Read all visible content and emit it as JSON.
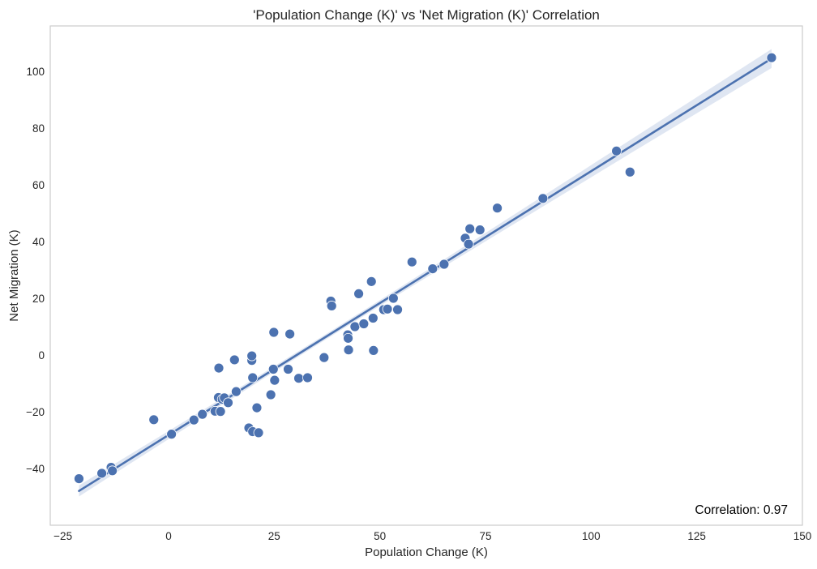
{
  "chart_data": {
    "type": "scatter",
    "title": "'Population Change (K)' vs 'Net Migration (K)' Correlation",
    "xlabel": "Population Change (K)",
    "ylabel": "Net Migration (K)",
    "xlim": [
      -28,
      150
    ],
    "ylim": [
      -60,
      116
    ],
    "xticks": [
      -25,
      0,
      25,
      50,
      75,
      100,
      125,
      150
    ],
    "xtick_labels": [
      "−25",
      "0",
      "25",
      "50",
      "75",
      "100",
      "125",
      "150"
    ],
    "yticks": [
      -40,
      -20,
      0,
      20,
      40,
      60,
      80,
      100
    ],
    "ytick_labels": [
      "−40",
      "−20",
      "0",
      "20",
      "40",
      "60",
      "80",
      "100"
    ],
    "grid": false,
    "annotation": "Correlation: 0.97",
    "regression": {
      "x_start": -21.2,
      "x_end": 142.7,
      "slope": 0.93,
      "intercept": -28.2,
      "band": "confidence interval"
    },
    "colors": {
      "points": "#4c72b0",
      "line": "#4c72b0",
      "band": "#dbe3f1",
      "frame": "#cccccc",
      "text": "#262626"
    },
    "points": [
      {
        "x": -21.2,
        "y": -43.6
      },
      {
        "x": -15.8,
        "y": -41.7
      },
      {
        "x": -13.6,
        "y": -39.6
      },
      {
        "x": -13.3,
        "y": -40.8
      },
      {
        "x": -3.5,
        "y": -22.8
      },
      {
        "x": 0.7,
        "y": -27.9
      },
      {
        "x": 6.0,
        "y": -22.9
      },
      {
        "x": 8.0,
        "y": -20.9
      },
      {
        "x": 11.0,
        "y": -19.8
      },
      {
        "x": 11.8,
        "y": -15.0
      },
      {
        "x": 12.3,
        "y": -19.9
      },
      {
        "x": 12.7,
        "y": -15.6
      },
      {
        "x": 13.2,
        "y": -15.1
      },
      {
        "x": 14.1,
        "y": -16.8
      },
      {
        "x": 11.9,
        "y": -4.6
      },
      {
        "x": 15.6,
        "y": -1.7
      },
      {
        "x": 16.0,
        "y": -12.9
      },
      {
        "x": 19.0,
        "y": -25.7
      },
      {
        "x": 19.9,
        "y": -27.0
      },
      {
        "x": 21.3,
        "y": -27.4
      },
      {
        "x": 20.9,
        "y": -18.6
      },
      {
        "x": 19.9,
        "y": -8.0
      },
      {
        "x": 19.7,
        "y": -1.9
      },
      {
        "x": 19.7,
        "y": -0.3
      },
      {
        "x": 24.2,
        "y": -14.0
      },
      {
        "x": 24.8,
        "y": -5.0
      },
      {
        "x": 25.1,
        "y": -8.9
      },
      {
        "x": 24.9,
        "y": 8.0
      },
      {
        "x": 28.3,
        "y": -5.0
      },
      {
        "x": 28.7,
        "y": 7.4
      },
      {
        "x": 30.8,
        "y": -8.2
      },
      {
        "x": 32.9,
        "y": -8.0
      },
      {
        "x": 36.8,
        "y": -0.9
      },
      {
        "x": 38.4,
        "y": 19.0
      },
      {
        "x": 38.6,
        "y": 17.3
      },
      {
        "x": 42.4,
        "y": 7.1
      },
      {
        "x": 42.5,
        "y": 5.9
      },
      {
        "x": 42.6,
        "y": 1.8
      },
      {
        "x": 44.1,
        "y": 10.0
      },
      {
        "x": 45.0,
        "y": 21.6
      },
      {
        "x": 46.2,
        "y": 11.0
      },
      {
        "x": 48.0,
        "y": 25.9
      },
      {
        "x": 48.4,
        "y": 13.0
      },
      {
        "x": 48.5,
        "y": 1.6
      },
      {
        "x": 50.9,
        "y": 16.0
      },
      {
        "x": 51.8,
        "y": 16.2
      },
      {
        "x": 53.2,
        "y": 20.0
      },
      {
        "x": 54.2,
        "y": 16.0
      },
      {
        "x": 57.6,
        "y": 32.8
      },
      {
        "x": 62.5,
        "y": 30.4
      },
      {
        "x": 65.2,
        "y": 32.0
      },
      {
        "x": 70.2,
        "y": 41.2
      },
      {
        "x": 71.0,
        "y": 39.1
      },
      {
        "x": 71.3,
        "y": 44.5
      },
      {
        "x": 73.7,
        "y": 44.1
      },
      {
        "x": 77.8,
        "y": 51.8
      },
      {
        "x": 88.6,
        "y": 55.2
      },
      {
        "x": 106.0,
        "y": 71.9
      },
      {
        "x": 109.2,
        "y": 64.5
      },
      {
        "x": 142.7,
        "y": 104.8
      }
    ]
  }
}
